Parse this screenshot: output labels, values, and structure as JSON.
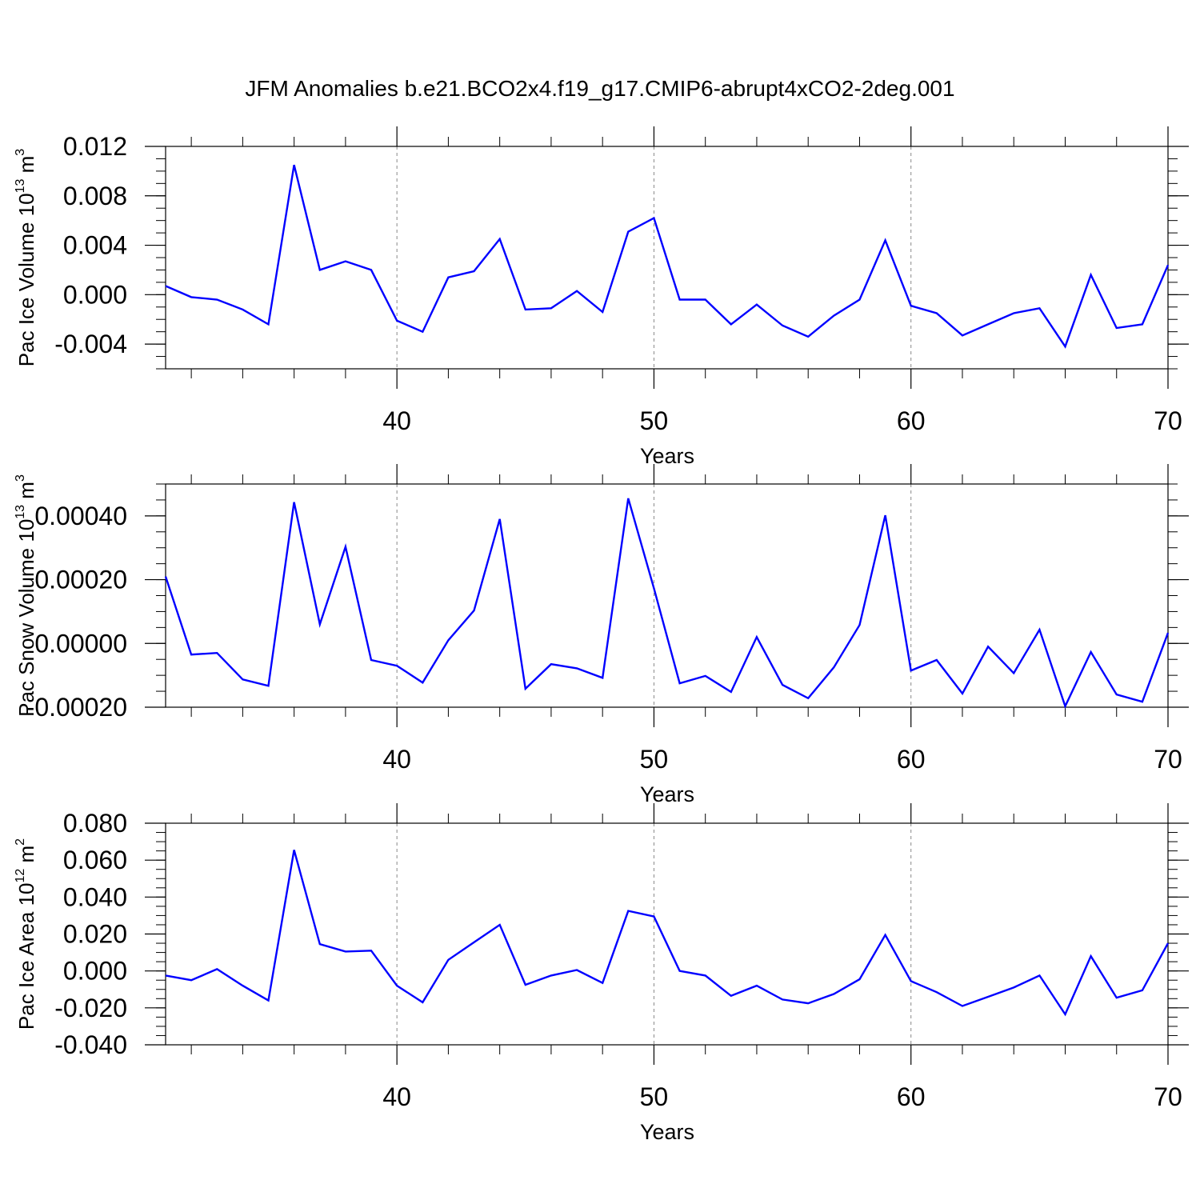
{
  "title": "JFM Anomalies b.e21.BCO2x4.f19_g17.CMIP6-abrupt4xCO2-2deg.001",
  "colors": {
    "line": "#0000ff",
    "axis": "#000000",
    "grid": "#888888",
    "background": "#ffffff"
  },
  "chart_data": [
    {
      "type": "line",
      "ylabel": "Pac Ice Volume 10",
      "ylabel_exponent": "13",
      "ylabel_unit": "m",
      "ylabel_unit_exponent": "3",
      "xlabel": "Years",
      "xlim": [
        31,
        70
      ],
      "ylim": [
        -0.006,
        0.012
      ],
      "yticks": [
        -0.004,
        0.0,
        0.004,
        0.008,
        0.012
      ],
      "ytick_labels": [
        "-0.004",
        "0.000",
        "0.004",
        "0.008",
        "0.012"
      ],
      "xticks": [
        40,
        50,
        60,
        70
      ],
      "xtick_labels": [
        "40",
        "50",
        "60",
        "70"
      ],
      "grid": "dashed vertical lines at 40, 50, 60",
      "x": [
        31,
        32,
        33,
        34,
        35,
        36,
        37,
        38,
        39,
        40,
        41,
        42,
        43,
        44,
        45,
        46,
        47,
        48,
        49,
        50,
        51,
        52,
        53,
        54,
        55,
        56,
        57,
        58,
        59,
        60,
        61,
        62,
        63,
        64,
        65,
        66,
        67,
        68,
        69,
        70
      ],
      "series": [
        {
          "values": [
            0.0007,
            -0.0002,
            -0.0004,
            -0.0012,
            -0.0024,
            0.0105,
            0.002,
            0.0027,
            0.002,
            -0.0021,
            -0.003,
            0.0014,
            0.0019,
            0.0045,
            -0.0012,
            -0.0011,
            0.0003,
            -0.0014,
            0.0051,
            0.0062,
            -0.0004,
            -0.0004,
            -0.0024,
            -0.0008,
            -0.0025,
            -0.0034,
            -0.0017,
            -0.0004,
            0.0044,
            -0.0009,
            -0.0015,
            -0.0033,
            -0.0024,
            -0.0015,
            -0.0011,
            -0.0042,
            0.0016,
            -0.0027,
            -0.0024,
            0.0024
          ]
        }
      ]
    },
    {
      "type": "line",
      "ylabel": "Pac Snow Volume 10",
      "ylabel_exponent": "13",
      "ylabel_unit": "m",
      "ylabel_unit_exponent": "3",
      "xlabel": "Years",
      "xlim": [
        31,
        70
      ],
      "ylim": [
        -0.0002,
        0.0005
      ],
      "yticks": [
        -0.0002,
        0.0,
        0.0002,
        0.0004
      ],
      "ytick_labels": [
        "-0.00020",
        "0.00000",
        "0.00020",
        "0.00040"
      ],
      "xticks": [
        40,
        50,
        60,
        70
      ],
      "xtick_labels": [
        "40",
        "50",
        "60",
        "70"
      ],
      "grid": "dashed vertical lines at 40, 50, 60",
      "x": [
        31,
        32,
        33,
        34,
        35,
        36,
        37,
        38,
        39,
        40,
        41,
        42,
        43,
        44,
        45,
        46,
        47,
        48,
        49,
        50,
        51,
        52,
        53,
        54,
        55,
        56,
        57,
        58,
        59,
        60,
        61,
        62,
        63,
        64,
        65,
        66,
        67,
        68,
        69,
        70
      ],
      "series": [
        {
          "values": [
            0.00021,
            -3.5e-05,
            -3e-05,
            -0.000113,
            -0.000133,
            0.000443,
            6e-05,
            0.000303,
            -5.2e-05,
            -7e-05,
            -0.000123,
            1e-05,
            0.000103,
            0.00039,
            -0.000142,
            -6.5e-05,
            -7.8e-05,
            -0.000108,
            0.000455,
            0.000173,
            -0.000125,
            -0.000102,
            -0.000152,
            2e-05,
            -0.00013,
            -0.000172,
            -7.5e-05,
            5.8e-05,
            0.000402,
            -8.5e-05,
            -5.2e-05,
            -0.000157,
            -1e-05,
            -9.3e-05,
            4.3e-05,
            -0.000197,
            -2.7e-05,
            -0.00016,
            -0.000183,
            3.3e-05
          ]
        }
      ]
    },
    {
      "type": "line",
      "ylabel": "Pac Ice Area 10",
      "ylabel_exponent": "12",
      "ylabel_unit": "m",
      "ylabel_unit_exponent": "2",
      "xlabel": "Years",
      "xlim": [
        31,
        70
      ],
      "ylim": [
        -0.04,
        0.08
      ],
      "yticks": [
        -0.04,
        -0.02,
        0.0,
        0.02,
        0.04,
        0.06,
        0.08
      ],
      "ytick_labels": [
        "-0.040",
        "-0.020",
        "0.000",
        "0.020",
        "0.040",
        "0.060",
        "0.080"
      ],
      "xticks": [
        40,
        50,
        60,
        70
      ],
      "xtick_labels": [
        "40",
        "50",
        "60",
        "70"
      ],
      "grid": "dashed vertical lines at 40, 50, 60",
      "x": [
        31,
        32,
        33,
        34,
        35,
        36,
        37,
        38,
        39,
        40,
        41,
        42,
        43,
        44,
        45,
        46,
        47,
        48,
        49,
        50,
        51,
        52,
        53,
        54,
        55,
        56,
        57,
        58,
        59,
        60,
        61,
        62,
        63,
        64,
        65,
        66,
        67,
        68,
        69,
        70
      ],
      "series": [
        {
          "values": [
            -0.0025,
            -0.005,
            0.001,
            -0.008,
            -0.016,
            0.0655,
            0.0145,
            0.0105,
            0.011,
            -0.008,
            -0.017,
            0.006,
            0.0155,
            0.025,
            -0.0075,
            -0.0025,
            0.0005,
            -0.0065,
            0.0325,
            0.0295,
            0.0,
            -0.0025,
            -0.0135,
            -0.008,
            -0.0155,
            -0.0175,
            -0.0125,
            -0.0045,
            0.0195,
            -0.0055,
            -0.0115,
            -0.019,
            -0.014,
            -0.009,
            -0.0025,
            -0.0235,
            0.008,
            -0.0145,
            -0.0105,
            0.015
          ]
        }
      ]
    }
  ]
}
